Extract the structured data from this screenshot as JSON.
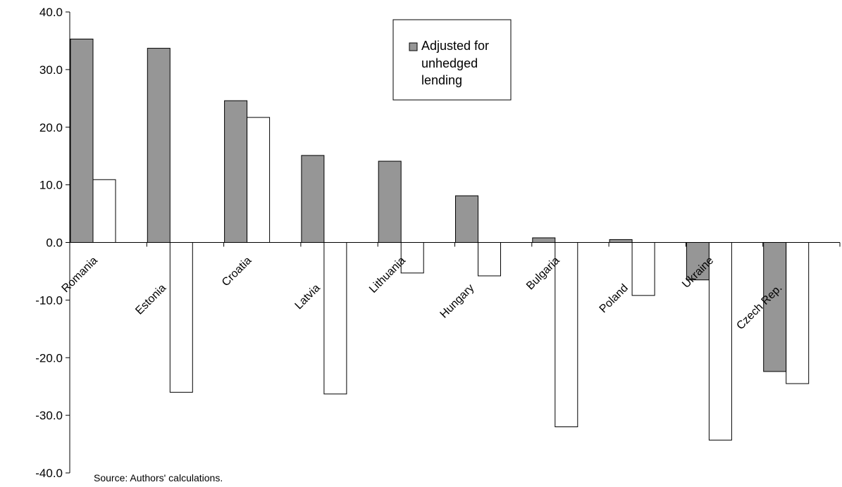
{
  "chart_data": {
    "type": "bar",
    "categories": [
      "Romania",
      "Estonia",
      "Croatia",
      "Latvia",
      "Lithuania",
      "Hungary",
      "Bulgaria",
      "Poland",
      "Ukraine",
      "Czech Rep."
    ],
    "series": [
      {
        "name": "Adjusted for unhedged lending",
        "name_lines": [
          "Adjusted for",
          "unhedged",
          "lending"
        ],
        "color": "#969696",
        "values": [
          35.3,
          33.7,
          24.6,
          15.1,
          14.1,
          8.1,
          0.8,
          0.5,
          -6.5,
          -22.4
        ]
      },
      {
        "name": "",
        "color": "#ffffff",
        "values": [
          10.9,
          -26.0,
          21.7,
          -26.3,
          -5.3,
          -5.8,
          -32.0,
          -9.2,
          -34.3,
          -24.5
        ]
      }
    ],
    "ylim": [
      -40,
      40
    ],
    "yticks": [
      "40.0",
      "30.0",
      "20.0",
      "10.0",
      "0.0",
      "-10.0",
      "-20.0",
      "-30.0",
      "-40.0"
    ],
    "ytick_values": [
      40,
      30,
      20,
      10,
      0,
      -10,
      -20,
      -30,
      -40
    ],
    "title": "",
    "xlabel": "",
    "ylabel": "",
    "grid": false,
    "legend": {
      "position": "top-center",
      "entries": [
        "Adjusted for unhedged lending"
      ]
    },
    "source_note": "Source: Authors' calculations.",
    "colors": {
      "bar_fill_dark": "#969696",
      "bar_fill_light": "#ffffff",
      "stroke": "#000000"
    }
  }
}
